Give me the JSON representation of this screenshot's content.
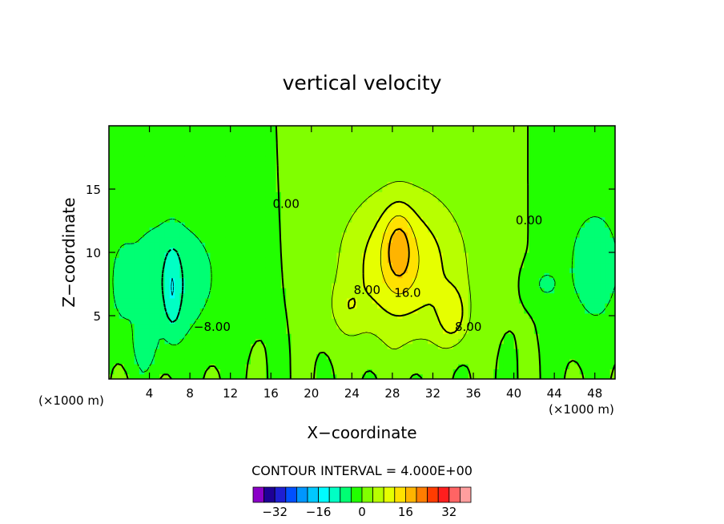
{
  "chart_data": {
    "type": "heatmap",
    "title": "vertical velocity",
    "xlabel": "X−coordinate",
    "ylabel": "Z−coordinate",
    "x_unit": "(×1000 m)",
    "x_unit_right": "(×1000 m)",
    "xlim": [
      0,
      50
    ],
    "ylim": [
      0,
      20
    ],
    "x_ticks": [
      4,
      8,
      12,
      16,
      20,
      24,
      28,
      32,
      36,
      40,
      44,
      48
    ],
    "y_ticks": [
      5,
      10,
      15
    ],
    "contour_interval_text": "CONTOUR INTERVAL = 4.000E+00",
    "contour_labels": [
      {
        "text": "0.00",
        "x": 17.5,
        "y": 13.5
      },
      {
        "text": "0.00",
        "x": 41.5,
        "y": 12.2
      },
      {
        "text": "−8.00",
        "x": 10.2,
        "y": 3.8
      },
      {
        "text": "8.00",
        "x": 25.5,
        "y": 6.7
      },
      {
        "text": "16.0",
        "x": 29.5,
        "y": 6.5
      },
      {
        "text": "8.00",
        "x": 35.5,
        "y": 3.8
      }
    ],
    "features": [
      {
        "kind": "updraft core",
        "x": 28.5,
        "y": 10,
        "value": 20
      },
      {
        "kind": "secondary updraft",
        "x": 34,
        "y": 4.5,
        "value": 16
      },
      {
        "kind": "downdraft core",
        "x": 6.2,
        "y": 7,
        "value": -12
      },
      {
        "kind": "downdraft",
        "x": 1.2,
        "y": 7.5,
        "value": -8
      },
      {
        "kind": "downdraft",
        "x": 47.5,
        "y": 9,
        "value": -8
      }
    ],
    "colorbar": {
      "levels": [
        -36,
        -32,
        -28,
        -24,
        -20,
        -16,
        -12,
        -8,
        -4,
        0,
        4,
        8,
        12,
        16,
        20,
        24,
        28,
        32,
        36
      ],
      "tick_labels": [
        "−32",
        "−16",
        "0",
        "16",
        "32"
      ],
      "tick_values": [
        -32,
        -16,
        0,
        16,
        32
      ],
      "colors": [
        "#8a00c8",
        "#1e0096",
        "#1e1ed2",
        "#0050ff",
        "#0096ff",
        "#00c8ff",
        "#00fcff",
        "#00ffc4",
        "#00ff73",
        "#22ff00",
        "#80ff00",
        "#b8ff00",
        "#e6ff00",
        "#ffe100",
        "#ffb400",
        "#ff7d00",
        "#ff3c00",
        "#ff1e1e",
        "#ff6464",
        "#ff9e9e"
      ]
    },
    "grid": false,
    "legend": "bottom-center colorbar"
  }
}
